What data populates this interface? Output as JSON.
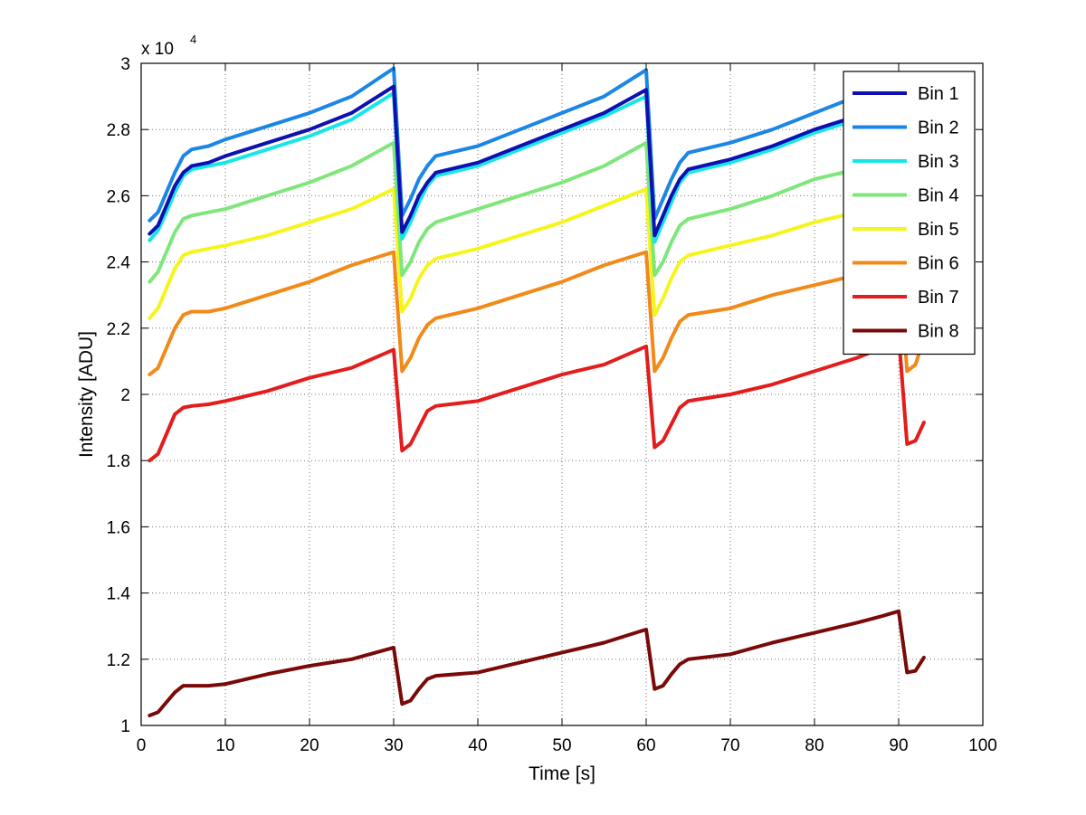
{
  "chart_data": {
    "type": "line",
    "xlabel": "Time [s]",
    "ylabel": "Intensity [ADU]",
    "y_exponent": {
      "base": "x 10",
      "power": "4"
    },
    "xlim": [
      0,
      100
    ],
    "ylim": [
      10000,
      30000
    ],
    "x_ticks": [
      0,
      10,
      20,
      30,
      40,
      50,
      60,
      70,
      80,
      90,
      100
    ],
    "y_ticks": [
      10000,
      12000,
      14000,
      16000,
      18000,
      20000,
      22000,
      24000,
      26000,
      28000,
      30000
    ],
    "y_tick_labels": [
      "1",
      "1.2",
      "1.4",
      "1.6",
      "1.8",
      "2",
      "2.2",
      "2.4",
      "2.6",
      "2.8",
      "3"
    ],
    "grid": true,
    "legend_position": "top-right",
    "segments": [
      {
        "x_start": 1,
        "x_end": 30
      },
      {
        "x_start": 31,
        "x_end": 60
      },
      {
        "x_start": 61,
        "x_end": 90
      },
      {
        "x_start": 91,
        "x_end": 93
      }
    ],
    "series": [
      {
        "name": "Bin 1",
        "color": "#1010b0",
        "points": [
          [
            1,
            24850
          ],
          [
            2,
            25100
          ],
          [
            3,
            25700
          ],
          [
            4,
            26300
          ],
          [
            5,
            26700
          ],
          [
            6,
            26900
          ],
          [
            8,
            27000
          ],
          [
            10,
            27200
          ],
          [
            15,
            27600
          ],
          [
            20,
            28000
          ],
          [
            25,
            28500
          ],
          [
            30,
            29300
          ],
          [
            31,
            24900
          ],
          [
            32,
            25400
          ],
          [
            33,
            26000
          ],
          [
            34,
            26400
          ],
          [
            35,
            26700
          ],
          [
            40,
            27000
          ],
          [
            45,
            27500
          ],
          [
            50,
            28000
          ],
          [
            55,
            28500
          ],
          [
            60,
            29200
          ],
          [
            61,
            24800
          ],
          [
            62,
            25400
          ],
          [
            63,
            26000
          ],
          [
            64,
            26500
          ],
          [
            65,
            26800
          ],
          [
            70,
            27100
          ],
          [
            75,
            27500
          ],
          [
            80,
            28000
          ],
          [
            85,
            28400
          ],
          [
            88,
            28700
          ],
          [
            90,
            29500
          ]
        ]
      },
      {
        "name": "Bin 2",
        "color": "#1a86e6",
        "points": [
          [
            1,
            25250
          ],
          [
            2,
            25500
          ],
          [
            3,
            26100
          ],
          [
            4,
            26700
          ],
          [
            5,
            27200
          ],
          [
            6,
            27400
          ],
          [
            8,
            27500
          ],
          [
            10,
            27700
          ],
          [
            15,
            28100
          ],
          [
            20,
            28500
          ],
          [
            25,
            29000
          ],
          [
            30,
            29850
          ],
          [
            31,
            25400
          ],
          [
            32,
            25900
          ],
          [
            33,
            26500
          ],
          [
            34,
            26900
          ],
          [
            35,
            27200
          ],
          [
            40,
            27500
          ],
          [
            45,
            28000
          ],
          [
            50,
            28500
          ],
          [
            55,
            29000
          ],
          [
            60,
            29800
          ],
          [
            61,
            25300
          ],
          [
            62,
            25900
          ],
          [
            63,
            26500
          ],
          [
            64,
            27000
          ],
          [
            65,
            27300
          ],
          [
            70,
            27600
          ],
          [
            75,
            28000
          ],
          [
            80,
            28500
          ],
          [
            85,
            29000
          ],
          [
            88,
            29300
          ],
          [
            90,
            29700
          ]
        ]
      },
      {
        "name": "Bin 3",
        "color": "#17e6e6",
        "points": [
          [
            1,
            24650
          ],
          [
            2,
            24950
          ],
          [
            3,
            25500
          ],
          [
            4,
            26100
          ],
          [
            5,
            26600
          ],
          [
            6,
            26800
          ],
          [
            8,
            26900
          ],
          [
            10,
            27000
          ],
          [
            15,
            27400
          ],
          [
            20,
            27800
          ],
          [
            25,
            28300
          ],
          [
            30,
            29100
          ],
          [
            31,
            24700
          ],
          [
            32,
            25200
          ],
          [
            33,
            25800
          ],
          [
            34,
            26300
          ],
          [
            35,
            26600
          ],
          [
            40,
            26900
          ],
          [
            45,
            27400
          ],
          [
            50,
            27900
          ],
          [
            55,
            28400
          ],
          [
            60,
            29000
          ],
          [
            61,
            24600
          ],
          [
            62,
            25200
          ],
          [
            63,
            25800
          ],
          [
            64,
            26400
          ],
          [
            65,
            26700
          ],
          [
            70,
            27000
          ],
          [
            75,
            27400
          ],
          [
            80,
            27900
          ],
          [
            85,
            28300
          ],
          [
            88,
            28600
          ],
          [
            90,
            29000
          ]
        ]
      },
      {
        "name": "Bin 4",
        "color": "#7ee67a",
        "points": [
          [
            1,
            23400
          ],
          [
            2,
            23700
          ],
          [
            3,
            24300
          ],
          [
            4,
            24900
          ],
          [
            5,
            25300
          ],
          [
            6,
            25400
          ],
          [
            8,
            25500
          ],
          [
            10,
            25600
          ],
          [
            15,
            26000
          ],
          [
            20,
            26400
          ],
          [
            25,
            26900
          ],
          [
            30,
            27600
          ],
          [
            31,
            23600
          ],
          [
            32,
            24000
          ],
          [
            33,
            24600
          ],
          [
            34,
            25000
          ],
          [
            35,
            25200
          ],
          [
            40,
            25600
          ],
          [
            45,
            26000
          ],
          [
            50,
            26400
          ],
          [
            55,
            26900
          ],
          [
            60,
            27600
          ],
          [
            61,
            23600
          ],
          [
            62,
            24000
          ],
          [
            63,
            24600
          ],
          [
            64,
            25100
          ],
          [
            65,
            25300
          ],
          [
            70,
            25600
          ],
          [
            75,
            26000
          ],
          [
            80,
            26500
          ],
          [
            85,
            26800
          ],
          [
            88,
            27000
          ],
          [
            90,
            27300
          ]
        ]
      },
      {
        "name": "Bin 5",
        "color": "#f5f51c",
        "points": [
          [
            1,
            22300
          ],
          [
            2,
            22600
          ],
          [
            3,
            23200
          ],
          [
            4,
            23800
          ],
          [
            5,
            24200
          ],
          [
            6,
            24300
          ],
          [
            8,
            24400
          ],
          [
            10,
            24500
          ],
          [
            15,
            24800
          ],
          [
            20,
            25200
          ],
          [
            25,
            25600
          ],
          [
            30,
            26200
          ],
          [
            31,
            22500
          ],
          [
            32,
            22900
          ],
          [
            33,
            23500
          ],
          [
            34,
            23900
          ],
          [
            35,
            24100
          ],
          [
            40,
            24400
          ],
          [
            45,
            24800
          ],
          [
            50,
            25200
          ],
          [
            55,
            25700
          ],
          [
            60,
            26200
          ],
          [
            61,
            22400
          ],
          [
            62,
            22900
          ],
          [
            63,
            23500
          ],
          [
            64,
            24000
          ],
          [
            65,
            24200
          ],
          [
            70,
            24500
          ],
          [
            75,
            24800
          ],
          [
            80,
            25200
          ],
          [
            85,
            25500
          ],
          [
            88,
            25700
          ],
          [
            90,
            26000
          ]
        ]
      },
      {
        "name": "Bin 6",
        "color": "#f28a1a",
        "points": [
          [
            1,
            20600
          ],
          [
            2,
            20800
          ],
          [
            3,
            21400
          ],
          [
            4,
            22000
          ],
          [
            5,
            22400
          ],
          [
            6,
            22500
          ],
          [
            8,
            22500
          ],
          [
            10,
            22600
          ],
          [
            15,
            23000
          ],
          [
            20,
            23400
          ],
          [
            25,
            23900
          ],
          [
            30,
            24300
          ],
          [
            31,
            20700
          ],
          [
            32,
            21100
          ],
          [
            33,
            21700
          ],
          [
            34,
            22100
          ],
          [
            35,
            22300
          ],
          [
            40,
            22600
          ],
          [
            45,
            23000
          ],
          [
            50,
            23400
          ],
          [
            55,
            23900
          ],
          [
            60,
            24300
          ],
          [
            61,
            20700
          ],
          [
            62,
            21100
          ],
          [
            63,
            21700
          ],
          [
            64,
            22200
          ],
          [
            65,
            22400
          ],
          [
            70,
            22600
          ],
          [
            75,
            23000
          ],
          [
            80,
            23300
          ],
          [
            85,
            23600
          ],
          [
            88,
            23800
          ],
          [
            90,
            24100
          ],
          [
            91,
            20700
          ],
          [
            92,
            20900
          ],
          [
            93,
            21700
          ]
        ]
      },
      {
        "name": "Bin 7",
        "color": "#e31c1c",
        "points": [
          [
            1,
            18000
          ],
          [
            2,
            18200
          ],
          [
            3,
            18800
          ],
          [
            4,
            19400
          ],
          [
            5,
            19600
          ],
          [
            6,
            19650
          ],
          [
            8,
            19700
          ],
          [
            10,
            19800
          ],
          [
            15,
            20100
          ],
          [
            20,
            20500
          ],
          [
            25,
            20800
          ],
          [
            30,
            21350
          ],
          [
            31,
            18300
          ],
          [
            32,
            18500
          ],
          [
            33,
            19000
          ],
          [
            34,
            19500
          ],
          [
            35,
            19650
          ],
          [
            40,
            19800
          ],
          [
            45,
            20200
          ],
          [
            50,
            20600
          ],
          [
            55,
            20900
          ],
          [
            60,
            21450
          ],
          [
            61,
            18400
          ],
          [
            62,
            18600
          ],
          [
            63,
            19100
          ],
          [
            64,
            19600
          ],
          [
            65,
            19800
          ],
          [
            70,
            20000
          ],
          [
            75,
            20300
          ],
          [
            80,
            20700
          ],
          [
            85,
            21100
          ],
          [
            88,
            21400
          ],
          [
            90,
            21800
          ],
          [
            91,
            18500
          ],
          [
            92,
            18600
          ],
          [
            93,
            19150
          ]
        ]
      },
      {
        "name": "Bin 8",
        "color": "#7a0a0a",
        "points": [
          [
            1,
            10300
          ],
          [
            2,
            10400
          ],
          [
            3,
            10700
          ],
          [
            4,
            11000
          ],
          [
            5,
            11200
          ],
          [
            6,
            11200
          ],
          [
            8,
            11200
          ],
          [
            10,
            11250
          ],
          [
            15,
            11550
          ],
          [
            20,
            11800
          ],
          [
            25,
            12000
          ],
          [
            30,
            12350
          ],
          [
            31,
            10650
          ],
          [
            32,
            10750
          ],
          [
            33,
            11100
          ],
          [
            34,
            11400
          ],
          [
            35,
            11500
          ],
          [
            40,
            11600
          ],
          [
            45,
            11900
          ],
          [
            50,
            12200
          ],
          [
            55,
            12500
          ],
          [
            60,
            12900
          ],
          [
            61,
            11100
          ],
          [
            62,
            11200
          ],
          [
            63,
            11550
          ],
          [
            64,
            11850
          ],
          [
            65,
            12000
          ],
          [
            70,
            12150
          ],
          [
            75,
            12500
          ],
          [
            80,
            12800
          ],
          [
            85,
            13100
          ],
          [
            88,
            13300
          ],
          [
            90,
            13450
          ],
          [
            91,
            11600
          ],
          [
            92,
            11650
          ],
          [
            93,
            12050
          ]
        ]
      }
    ]
  }
}
